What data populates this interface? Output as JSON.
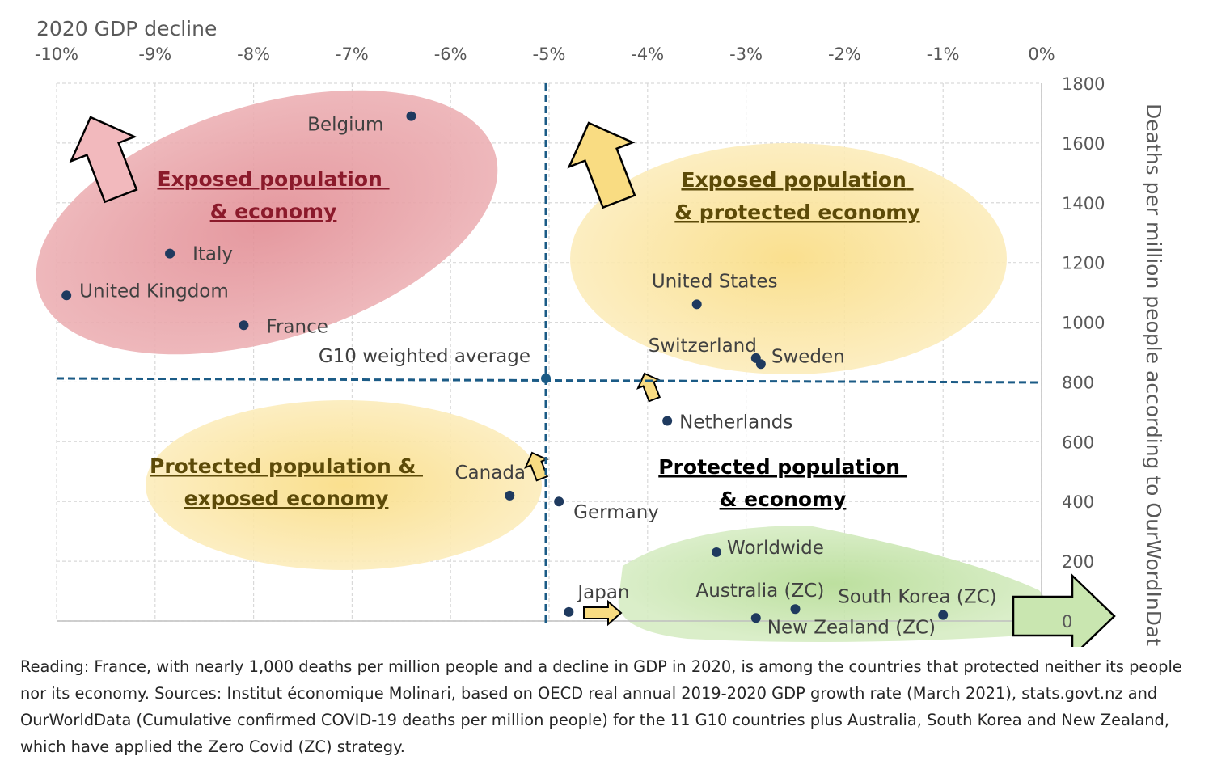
{
  "chart_data": {
    "type": "scatter",
    "title": "2020 GDP decline",
    "xlabel": "",
    "ylabel": "Deaths per million people according to OurWordInData",
    "xlim": [
      -10,
      0
    ],
    "ylim": [
      0,
      1800
    ],
    "x_ticks": [
      "-10%",
      "-9%",
      "-8%",
      "-7%",
      "-6%",
      "-5%",
      "-4%",
      "-3%",
      "-2%",
      "-1%",
      "0%"
    ],
    "y_ticks": [
      "0",
      "200",
      "400",
      "600",
      "800",
      "1000",
      "1200",
      "1400",
      "1600",
      "1800"
    ],
    "grid": true,
    "points": [
      {
        "label": "Belgium",
        "x": -6.4,
        "y": 1690
      },
      {
        "label": "Italy",
        "x": -8.85,
        "y": 1230
      },
      {
        "label": "United Kingdom",
        "x": -9.9,
        "y": 1090
      },
      {
        "label": "France",
        "x": -8.1,
        "y": 990
      },
      {
        "label": "United States",
        "x": -3.5,
        "y": 1060
      },
      {
        "label": "Switzerland",
        "x": -2.9,
        "y": 880
      },
      {
        "label": "Sweden",
        "x": -2.85,
        "y": 860
      },
      {
        "label": "Netherlands",
        "x": -3.8,
        "y": 670
      },
      {
        "label": "Canada",
        "x": -5.4,
        "y": 420
      },
      {
        "label": "Germany",
        "x": -4.9,
        "y": 400
      },
      {
        "label": "Worldwide",
        "x": -3.3,
        "y": 230
      },
      {
        "label": "Japan",
        "x": -4.8,
        "y": 30
      },
      {
        "label": "Australia (ZC)",
        "x": -2.5,
        "y": 40
      },
      {
        "label": "New Zealand (ZC)",
        "x": -2.9,
        "y": 10
      },
      {
        "label": "South Korea (ZC)",
        "x": -1.0,
        "y": 20
      }
    ],
    "reference": {
      "label": "G10 weighted average",
      "x": -5.0,
      "y": 810
    },
    "quadrants": [
      {
        "label": [
          "Exposed population",
          "& economy"
        ],
        "color": "#8b1a2b"
      },
      {
        "label": [
          "Exposed population",
          "& protected economy"
        ],
        "color": "#5c4a08"
      },
      {
        "label": [
          "Protected population &",
          "exposed economy"
        ],
        "color": "#5c4a08"
      },
      {
        "label": [
          "Protected population",
          "& economy"
        ],
        "color": "#000000"
      }
    ],
    "colors": {
      "red_zone": "#e8a1a6",
      "yellow_zone": "#fbe7a1",
      "green_zone": "#c9e6b0",
      "point": "#1f3a5f",
      "reference_line": "#1b5b86"
    }
  },
  "caption": "Reading: France, with nearly 1,000 deaths per million people and a decline in GDP in 2020, is among the countries that protected neither its people nor its economy. Sources: Institut économique Molinari, based on OECD real annual 2019-2020 GDP growth rate (March 2021), stats.govt.nz and OurWorldData (Cumulative confirmed COVID-19 deaths per million people) for the 11 G10 countries plus Australia, South Korea and New Zealand, which have applied the Zero Covid (ZC) strategy."
}
